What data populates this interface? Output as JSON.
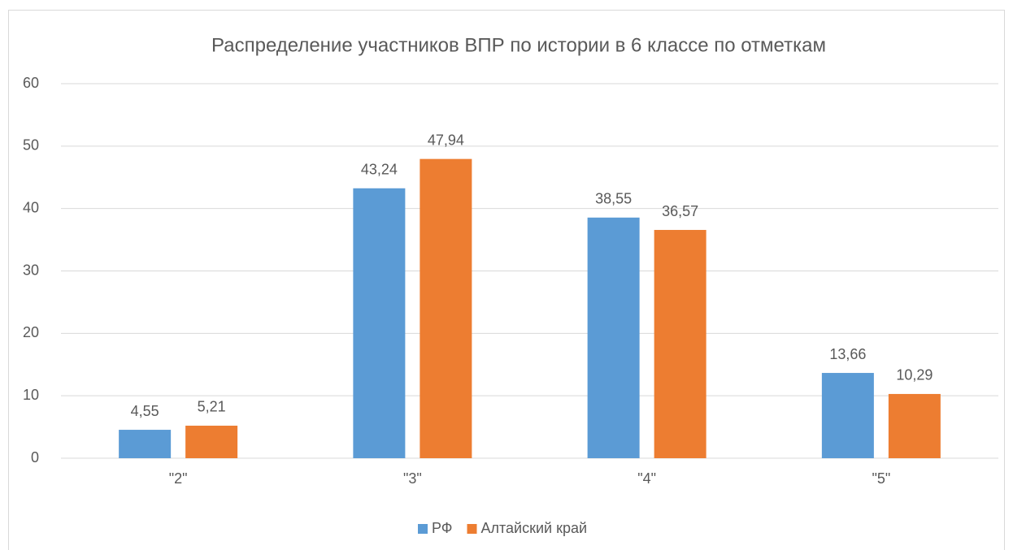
{
  "chart_data": {
    "type": "bar",
    "title": "Распределение участников ВПР по истории в 6 классе по отметкам",
    "categories": [
      "\"2\"",
      "\"3\"",
      "\"4\"",
      "\"5\""
    ],
    "series": [
      {
        "name": "РФ",
        "color": "#5b9bd5",
        "values": [
          4.55,
          43.24,
          38.55,
          13.66
        ],
        "value_labels": [
          "4,55",
          "43,24",
          "38,55",
          "13,66"
        ]
      },
      {
        "name": "Алтайский край",
        "color": "#ed7d31",
        "values": [
          5.21,
          47.94,
          36.57,
          10.29
        ],
        "value_labels": [
          "5,21",
          "47,94",
          "36,57",
          "10,29"
        ]
      }
    ],
    "ylim": [
      0,
      60
    ],
    "yticks": [
      0,
      10,
      20,
      30,
      40,
      50,
      60
    ],
    "grid": true,
    "legend": "bottom"
  }
}
